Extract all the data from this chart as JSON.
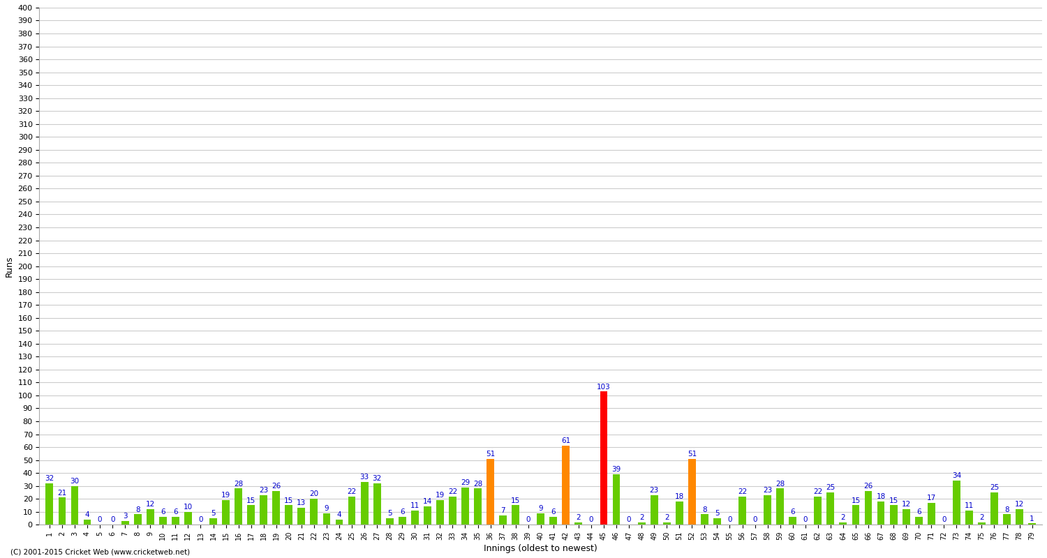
{
  "values": [
    32,
    21,
    30,
    4,
    0,
    0,
    3,
    8,
    12,
    6,
    6,
    10,
    0,
    5,
    19,
    28,
    15,
    23,
    26,
    15,
    13,
    20,
    9,
    4,
    22,
    33,
    32,
    5,
    6,
    11,
    14,
    19,
    22,
    29,
    28,
    51,
    7,
    15,
    0,
    9,
    6,
    61,
    2,
    0,
    103,
    39,
    0,
    2,
    23,
    2,
    18,
    51,
    8,
    5,
    0,
    22,
    0,
    23,
    28,
    6,
    0,
    22,
    25,
    2,
    15,
    26,
    18,
    15,
    12,
    6,
    17,
    0,
    34,
    11,
    2,
    25,
    8,
    12,
    1
  ],
  "x_labels": [
    "1",
    "2",
    "3",
    "4",
    "5",
    "6",
    "7",
    "8",
    "9",
    "10",
    "11",
    "12",
    "13",
    "14",
    "15",
    "16",
    "17",
    "18",
    "19",
    "20",
    "21",
    "22",
    "23",
    "24",
    "25",
    "26",
    "27",
    "28",
    "29",
    "30",
    "31",
    "32",
    "33",
    "34",
    "35",
    "36",
    "37",
    "38",
    "39",
    "40",
    "41",
    "42",
    "43",
    "44",
    "45",
    "46",
    "47",
    "48",
    "49",
    "50",
    "51",
    "52",
    "53",
    "54",
    "55",
    "56",
    "57",
    "58",
    "59",
    "60",
    "61",
    "62",
    "63",
    "64",
    "65",
    "66",
    "67",
    "68",
    "69",
    "70",
    "71",
    "72",
    "73",
    "74",
    "75",
    "76",
    "77",
    "78",
    "79"
  ],
  "color_green": "#66cc00",
  "color_orange": "#ff8800",
  "color_red": "#ff0000",
  "ylabel": "Runs",
  "xlabel": "Innings (oldest to newest)",
  "footer": "(C) 2001-2015 Cricket Web (www.cricketweb.net)",
  "ylim": [
    0,
    400
  ],
  "yticks": [
    0,
    10,
    20,
    30,
    40,
    50,
    60,
    70,
    80,
    90,
    100,
    110,
    120,
    130,
    140,
    150,
    160,
    170,
    180,
    190,
    200,
    210,
    220,
    230,
    240,
    250,
    260,
    270,
    280,
    290,
    300,
    310,
    320,
    330,
    340,
    350,
    360,
    370,
    380,
    390,
    400
  ],
  "background_color": "#ffffff",
  "grid_color": "#cccccc",
  "label_color": "#0000cc",
  "fifty_threshold": 50,
  "hundred_threshold": 100,
  "bar_width": 0.6
}
